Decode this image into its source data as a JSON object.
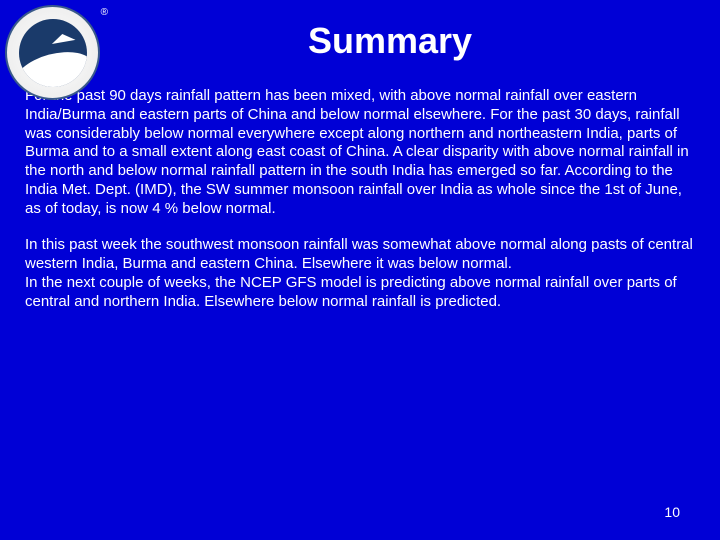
{
  "title": "Summary",
  "paragraphs": {
    "p1": "For the past 90 days rainfall pattern has been mixed, with above normal rainfall over eastern India/Burma and eastern parts of China and below normal elsewhere. For the past 30 days, rainfall was considerably below normal everywhere except along northern and northeastern India, parts of Burma and to a small extent along east coast of China. A clear disparity with above normal rainfall in the north and below normal rainfall pattern in the south India has emerged so far. According to the India Met. Dept. (IMD), the SW summer monsoon rainfall over India as whole since the 1st of June, as of today, is now 4 % below normal.",
    "p2": "In this past week  the southwest monsoon rainfall was somewhat above normal along pasts of central western India, Burma and eastern China.  Elsewhere it was below normal.",
    "p3": "In the next couple of weeks, the NCEP GFS model is predicting above normal rainfall over parts of central and northern India. Elsewhere below normal rainfall is predicted."
  },
  "page_number": "10",
  "styling": {
    "background_color": "#0000d6",
    "text_color": "#ffffff",
    "title_fontsize": 36,
    "body_fontsize": 15,
    "font_family": "Arial"
  },
  "logo": {
    "name": "noaa-logo",
    "outer_color": "#e8e8e8",
    "inner_color": "#1a3a6a",
    "border_color": "#3a5a8a"
  }
}
